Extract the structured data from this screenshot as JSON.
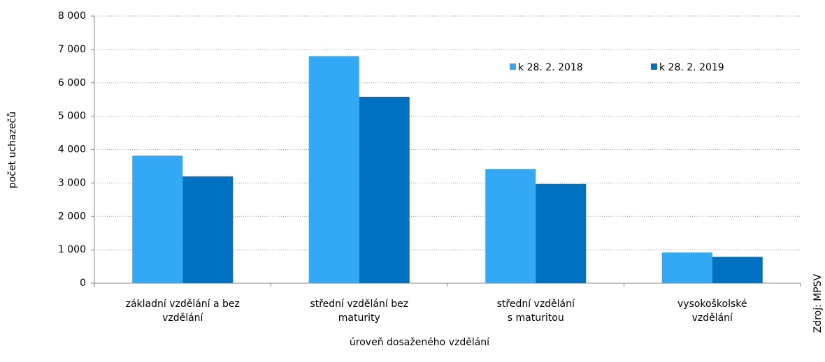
{
  "chart_data": {
    "type": "bar",
    "categories": [
      "základní vzdělání a bez\nvzdělání",
      "střední vzdělání  bez\nmaturity",
      "střední vzdělání\ns maturitou",
      "vysokoškolské\nvzdělání"
    ],
    "series": [
      {
        "name": "k 28. 2. 2018",
        "color": "#33a9f5",
        "values": [
          3820,
          6800,
          3420,
          920
        ]
      },
      {
        "name": "k 28. 2. 2019",
        "color": "#0070c0",
        "values": [
          3200,
          5580,
          2970,
          790
        ]
      }
    ],
    "ylim": [
      0,
      8000
    ],
    "yticks": [
      0,
      {
        "value": 1000,
        "label": "1 000"
      },
      {
        "value": 2000,
        "label": "2 000"
      },
      {
        "value": 3000,
        "label": "3 000"
      },
      {
        "value": 4000,
        "label": "4 000"
      },
      {
        "value": 5000,
        "label": "5 000"
      },
      {
        "value": 6000,
        "label": "6 000"
      },
      {
        "value": 7000,
        "label": "7 000"
      },
      {
        "value": 8000,
        "label": "8 000"
      }
    ],
    "grid": true,
    "y_label": "počet uchazečů",
    "x_label": "úroveň dosaženého vzdělání",
    "source": "Zdroj: MPSV",
    "legend": "top-right"
  }
}
